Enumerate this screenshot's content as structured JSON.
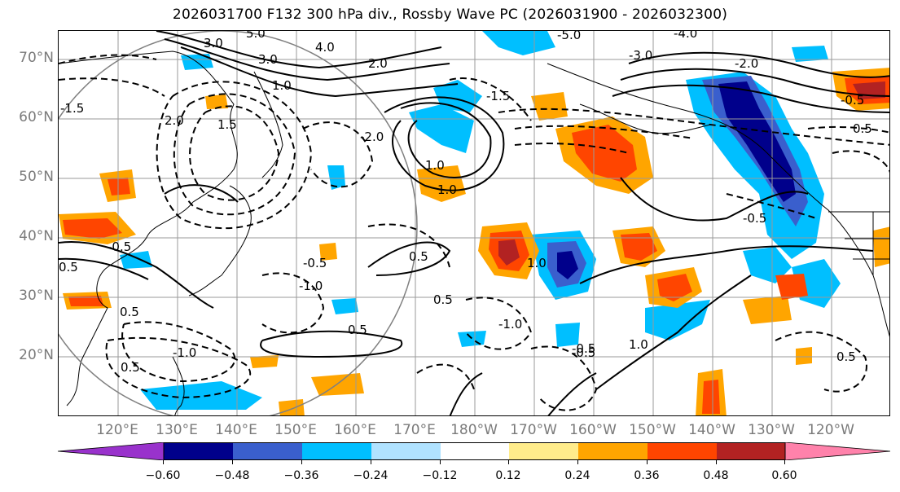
{
  "title": "2026031700 F132 300 hPa div., Rossby Wave PC (2026031900 - 2026032300)",
  "map": {
    "projection": "equirectangular",
    "lat_labels": [
      "70°N",
      "60°N",
      "50°N",
      "40°N",
      "30°N",
      "20°N"
    ],
    "lon_labels": [
      "120°E",
      "130°E",
      "140°E",
      "150°E",
      "160°E",
      "170°E",
      "180°W",
      "170°W",
      "160°W",
      "150°W",
      "140°W",
      "130°W",
      "120°W"
    ],
    "contour_labels": [
      "5.0",
      "3.0",
      "4.0",
      "3.0",
      "2.0",
      "1.0",
      "-1.5",
      "2.0",
      "1.5",
      "-5.0",
      "-3.0",
      "-4.0",
      "-2.0",
      "1.0",
      "0.5",
      "-0.5",
      "-1.0",
      "0.5",
      "-1.0",
      "-0.5",
      "0.5",
      "-1.0",
      "0.5",
      "0.5",
      "-0.5",
      "1.0",
      "-0.5",
      "0.5",
      "-2.0",
      "-1.5",
      "-0.5",
      "0.5",
      "1.0",
      "-0.5",
      "0.5",
      "1.0"
    ],
    "colors": {
      "coast": "#000000",
      "grid": "#9a9a9a",
      "circle": "#808080"
    }
  },
  "colorbar": {
    "tick_labels": [
      "−0.60",
      "−0.48",
      "−0.36",
      "−0.24",
      "−0.12",
      "0.12",
      "0.24",
      "0.36",
      "0.48",
      "0.60"
    ],
    "colors": [
      "#9932CC",
      "#00008B",
      "#3A5FCD",
      "#00BFFF",
      "#B0E2FF",
      "#FFFFFF",
      "#FFEC8B",
      "#FFA500",
      "#FF4500",
      "#B22222",
      "#FF82AB"
    ]
  }
}
